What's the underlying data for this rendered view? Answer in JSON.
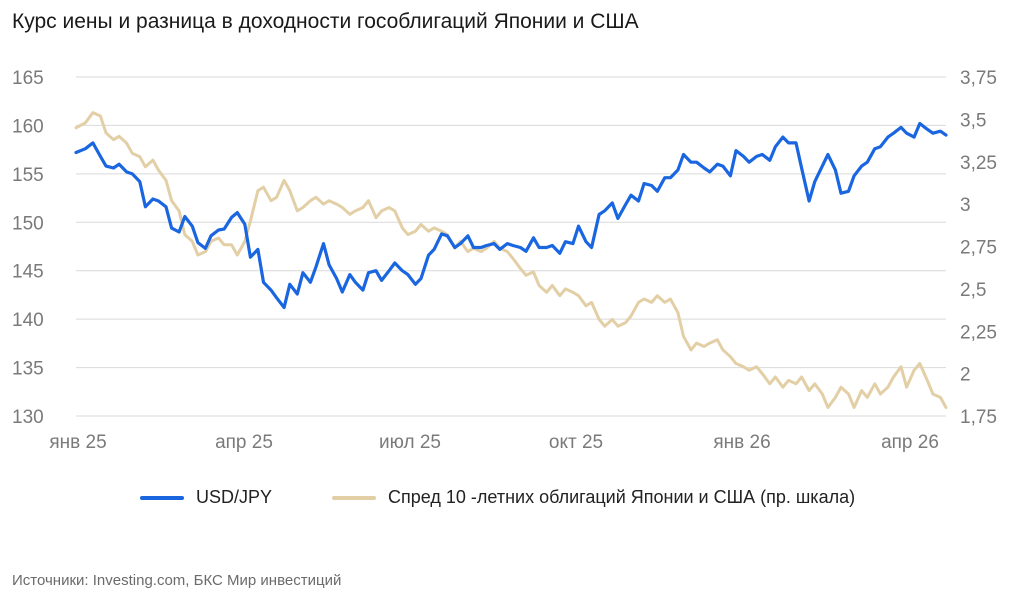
{
  "title": "Курс иены и разница в доходности гособлигаций Японии и США",
  "source": "Источники: Investing.com, БКС Мир инвестиций",
  "colors": {
    "usdjpy": "#1a66e0",
    "spread": "#e2cfa6",
    "grid": "#d9d9d9",
    "axis_text": "#7a7a7a"
  },
  "chart_data": {
    "type": "line",
    "title": "Курс иены и разница в доходности гособлигаций Японии и США",
    "xlabel": "",
    "ylabel": "",
    "grid": true,
    "legend_position": "bottom",
    "x_ticks": [
      "янв 25",
      "апр 25",
      "июл 25",
      "окт 25",
      "янв 26",
      "апр 26"
    ],
    "y_left": {
      "ticks": [
        "165",
        "160",
        "155",
        "150",
        "145",
        "140",
        "135",
        "130"
      ],
      "lim": [
        130,
        165
      ]
    },
    "y_right": {
      "ticks": [
        "3,75",
        "3,5",
        "3,25",
        "3",
        "2,75",
        "2,5",
        "2,25",
        "2",
        "1,75"
      ],
      "lim": [
        1.75,
        3.75
      ]
    },
    "x_range": [
      "2025-01-01",
      "2026-04-10"
    ],
    "series": [
      {
        "name": "USD/JPY",
        "axis": "left",
        "color": "#1a66e0",
        "points": [
          [
            "2025-01-01",
            157.2
          ],
          [
            "2025-01-06",
            157.6
          ],
          [
            "2025-01-10",
            158.2
          ],
          [
            "2025-01-14",
            156.8
          ],
          [
            "2025-01-17",
            155.8
          ],
          [
            "2025-01-21",
            155.6
          ],
          [
            "2025-01-24",
            156.0
          ],
          [
            "2025-01-28",
            155.2
          ],
          [
            "2025-01-31",
            155.0
          ],
          [
            "2025-02-04",
            154.2
          ],
          [
            "2025-02-07",
            151.6
          ],
          [
            "2025-02-11",
            152.4
          ],
          [
            "2025-02-14",
            152.2
          ],
          [
            "2025-02-18",
            151.6
          ],
          [
            "2025-02-21",
            149.4
          ],
          [
            "2025-02-25",
            149.0
          ],
          [
            "2025-02-28",
            150.6
          ],
          [
            "2025-03-04",
            149.6
          ],
          [
            "2025-03-07",
            147.9
          ],
          [
            "2025-03-11",
            147.3
          ],
          [
            "2025-03-14",
            148.6
          ],
          [
            "2025-03-18",
            149.2
          ],
          [
            "2025-03-21",
            149.3
          ],
          [
            "2025-03-25",
            150.5
          ],
          [
            "2025-03-28",
            151.0
          ],
          [
            "2025-04-01",
            149.8
          ],
          [
            "2025-04-04",
            146.4
          ],
          [
            "2025-04-08",
            147.2
          ],
          [
            "2025-04-11",
            143.8
          ],
          [
            "2025-04-15",
            143.0
          ],
          [
            "2025-04-18",
            142.2
          ],
          [
            "2025-04-22",
            141.2
          ],
          [
            "2025-04-25",
            143.6
          ],
          [
            "2025-04-29",
            142.6
          ],
          [
            "2025-05-02",
            144.8
          ],
          [
            "2025-05-06",
            143.8
          ],
          [
            "2025-05-09",
            145.4
          ],
          [
            "2025-05-13",
            147.8
          ],
          [
            "2025-05-16",
            145.6
          ],
          [
            "2025-05-20",
            144.2
          ],
          [
            "2025-05-23",
            142.8
          ],
          [
            "2025-05-27",
            144.6
          ],
          [
            "2025-05-30",
            143.8
          ],
          [
            "2025-06-03",
            143.0
          ],
          [
            "2025-06-06",
            144.8
          ],
          [
            "2025-06-10",
            145.0
          ],
          [
            "2025-06-13",
            144.0
          ],
          [
            "2025-06-17",
            145.0
          ],
          [
            "2025-06-20",
            145.8
          ],
          [
            "2025-06-24",
            145.0
          ],
          [
            "2025-06-27",
            144.6
          ],
          [
            "2025-07-01",
            143.6
          ],
          [
            "2025-07-04",
            144.2
          ],
          [
            "2025-07-08",
            146.6
          ],
          [
            "2025-07-11",
            147.2
          ],
          [
            "2025-07-15",
            148.8
          ],
          [
            "2025-07-18",
            148.6
          ],
          [
            "2025-07-22",
            147.4
          ],
          [
            "2025-07-25",
            147.8
          ],
          [
            "2025-07-29",
            148.6
          ],
          [
            "2025-08-01",
            147.4
          ],
          [
            "2025-08-05",
            147.4
          ],
          [
            "2025-08-08",
            147.6
          ],
          [
            "2025-08-12",
            147.8
          ],
          [
            "2025-08-15",
            147.2
          ],
          [
            "2025-08-19",
            147.8
          ],
          [
            "2025-08-22",
            147.6
          ],
          [
            "2025-08-26",
            147.4
          ],
          [
            "2025-08-29",
            147.0
          ],
          [
            "2025-09-02",
            148.4
          ],
          [
            "2025-09-05",
            147.4
          ],
          [
            "2025-09-09",
            147.4
          ],
          [
            "2025-09-12",
            147.6
          ],
          [
            "2025-09-16",
            146.8
          ],
          [
            "2025-09-19",
            148.0
          ],
          [
            "2025-09-23",
            147.8
          ],
          [
            "2025-09-26",
            149.6
          ],
          [
            "2025-09-30",
            148.0
          ],
          [
            "2025-10-03",
            147.4
          ],
          [
            "2025-10-07",
            150.8
          ],
          [
            "2025-10-10",
            151.2
          ],
          [
            "2025-10-14",
            152.0
          ],
          [
            "2025-10-17",
            150.4
          ],
          [
            "2025-10-21",
            151.8
          ],
          [
            "2025-10-24",
            152.8
          ],
          [
            "2025-10-28",
            152.2
          ],
          [
            "2025-10-31",
            154.0
          ],
          [
            "2025-11-04",
            153.8
          ],
          [
            "2025-11-07",
            153.2
          ],
          [
            "2025-11-11",
            154.6
          ],
          [
            "2025-11-14",
            154.6
          ],
          [
            "2025-11-18",
            155.4
          ],
          [
            "2025-11-21",
            157.0
          ],
          [
            "2025-11-25",
            156.2
          ],
          [
            "2025-11-28",
            156.2
          ],
          [
            "2025-12-02",
            155.6
          ],
          [
            "2025-12-05",
            155.2
          ],
          [
            "2025-12-09",
            156.0
          ],
          [
            "2025-12-12",
            155.8
          ],
          [
            "2025-12-16",
            154.8
          ],
          [
            "2025-12-19",
            157.4
          ],
          [
            "2025-12-23",
            156.8
          ],
          [
            "2025-12-26",
            156.2
          ],
          [
            "2025-12-30",
            156.8
          ],
          [
            "2026-01-02",
            157.0
          ],
          [
            "2026-01-06",
            156.4
          ],
          [
            "2026-01-09",
            157.8
          ],
          [
            "2026-01-13",
            158.8
          ],
          [
            "2026-01-16",
            158.2
          ],
          [
            "2026-01-20",
            158.2
          ],
          [
            "2026-01-23",
            155.6
          ],
          [
            "2026-01-27",
            152.2
          ],
          [
            "2026-01-30",
            154.2
          ],
          [
            "2026-02-03",
            155.8
          ],
          [
            "2026-02-06",
            157.0
          ],
          [
            "2026-02-10",
            155.4
          ],
          [
            "2026-02-13",
            153.0
          ],
          [
            "2026-02-17",
            153.2
          ],
          [
            "2026-02-20",
            154.8
          ],
          [
            "2026-02-24",
            155.8
          ],
          [
            "2026-02-27",
            156.2
          ],
          [
            "2026-03-03",
            157.6
          ],
          [
            "2026-03-06",
            157.8
          ],
          [
            "2026-03-10",
            158.8
          ],
          [
            "2026-03-13",
            159.2
          ],
          [
            "2026-03-17",
            159.8
          ],
          [
            "2026-03-20",
            159.2
          ],
          [
            "2026-03-24",
            158.8
          ],
          [
            "2026-03-27",
            160.2
          ],
          [
            "2026-03-31",
            159.6
          ],
          [
            "2026-04-03",
            159.2
          ],
          [
            "2026-04-07",
            159.4
          ],
          [
            "2026-04-10",
            159.0
          ]
        ]
      },
      {
        "name": "Спред 10 -летних облигаций Японии и США (пр. шкала)",
        "axis": "right",
        "color": "#e2cfa6",
        "points": [
          [
            "2025-01-01",
            3.45
          ],
          [
            "2025-01-06",
            3.48
          ],
          [
            "2025-01-10",
            3.54
          ],
          [
            "2025-01-14",
            3.52
          ],
          [
            "2025-01-17",
            3.42
          ],
          [
            "2025-01-21",
            3.38
          ],
          [
            "2025-01-24",
            3.4
          ],
          [
            "2025-01-28",
            3.36
          ],
          [
            "2025-01-31",
            3.3
          ],
          [
            "2025-02-04",
            3.28
          ],
          [
            "2025-02-07",
            3.22
          ],
          [
            "2025-02-11",
            3.26
          ],
          [
            "2025-02-14",
            3.2
          ],
          [
            "2025-02-18",
            3.14
          ],
          [
            "2025-02-21",
            3.02
          ],
          [
            "2025-02-25",
            2.96
          ],
          [
            "2025-02-28",
            2.82
          ],
          [
            "2025-03-04",
            2.78
          ],
          [
            "2025-03-07",
            2.7
          ],
          [
            "2025-03-11",
            2.72
          ],
          [
            "2025-03-14",
            2.78
          ],
          [
            "2025-03-18",
            2.8
          ],
          [
            "2025-03-21",
            2.76
          ],
          [
            "2025-03-25",
            2.76
          ],
          [
            "2025-03-28",
            2.7
          ],
          [
            "2025-04-01",
            2.78
          ],
          [
            "2025-04-04",
            2.9
          ],
          [
            "2025-04-08",
            3.08
          ],
          [
            "2025-04-11",
            3.1
          ],
          [
            "2025-04-15",
            3.02
          ],
          [
            "2025-04-18",
            3.04
          ],
          [
            "2025-04-22",
            3.14
          ],
          [
            "2025-04-25",
            3.08
          ],
          [
            "2025-04-29",
            2.96
          ],
          [
            "2025-05-02",
            2.98
          ],
          [
            "2025-05-06",
            3.02
          ],
          [
            "2025-05-09",
            3.04
          ],
          [
            "2025-05-13",
            3.0
          ],
          [
            "2025-05-16",
            3.02
          ],
          [
            "2025-05-20",
            3.0
          ],
          [
            "2025-05-23",
            2.98
          ],
          [
            "2025-05-27",
            2.94
          ],
          [
            "2025-05-30",
            2.96
          ],
          [
            "2025-06-03",
            2.98
          ],
          [
            "2025-06-06",
            3.02
          ],
          [
            "2025-06-10",
            2.92
          ],
          [
            "2025-06-13",
            2.96
          ],
          [
            "2025-06-17",
            2.98
          ],
          [
            "2025-06-20",
            2.96
          ],
          [
            "2025-06-24",
            2.86
          ],
          [
            "2025-06-27",
            2.82
          ],
          [
            "2025-07-01",
            2.84
          ],
          [
            "2025-07-04",
            2.88
          ],
          [
            "2025-07-08",
            2.84
          ],
          [
            "2025-07-11",
            2.86
          ],
          [
            "2025-07-15",
            2.84
          ],
          [
            "2025-07-18",
            2.82
          ],
          [
            "2025-07-22",
            2.74
          ],
          [
            "2025-07-25",
            2.78
          ],
          [
            "2025-07-29",
            2.72
          ],
          [
            "2025-08-01",
            2.74
          ],
          [
            "2025-08-05",
            2.72
          ],
          [
            "2025-08-08",
            2.74
          ],
          [
            "2025-08-12",
            2.78
          ],
          [
            "2025-08-15",
            2.74
          ],
          [
            "2025-08-19",
            2.72
          ],
          [
            "2025-08-22",
            2.68
          ],
          [
            "2025-08-26",
            2.62
          ],
          [
            "2025-08-29",
            2.58
          ],
          [
            "2025-09-02",
            2.6
          ],
          [
            "2025-09-05",
            2.52
          ],
          [
            "2025-09-09",
            2.48
          ],
          [
            "2025-09-12",
            2.52
          ],
          [
            "2025-09-16",
            2.46
          ],
          [
            "2025-09-19",
            2.5
          ],
          [
            "2025-09-23",
            2.48
          ],
          [
            "2025-09-26",
            2.46
          ],
          [
            "2025-09-30",
            2.4
          ],
          [
            "2025-10-03",
            2.42
          ],
          [
            "2025-10-07",
            2.32
          ],
          [
            "2025-10-10",
            2.28
          ],
          [
            "2025-10-14",
            2.32
          ],
          [
            "2025-10-17",
            2.28
          ],
          [
            "2025-10-21",
            2.3
          ],
          [
            "2025-10-24",
            2.34
          ],
          [
            "2025-10-28",
            2.42
          ],
          [
            "2025-10-31",
            2.44
          ],
          [
            "2025-11-04",
            2.42
          ],
          [
            "2025-11-07",
            2.46
          ],
          [
            "2025-11-11",
            2.42
          ],
          [
            "2025-11-14",
            2.44
          ],
          [
            "2025-11-18",
            2.36
          ],
          [
            "2025-11-21",
            2.22
          ],
          [
            "2025-11-25",
            2.14
          ],
          [
            "2025-11-28",
            2.18
          ],
          [
            "2025-12-02",
            2.16
          ],
          [
            "2025-12-05",
            2.18
          ],
          [
            "2025-12-09",
            2.2
          ],
          [
            "2025-12-12",
            2.14
          ],
          [
            "2025-12-16",
            2.1
          ],
          [
            "2025-12-19",
            2.06
          ],
          [
            "2025-12-23",
            2.04
          ],
          [
            "2025-12-26",
            2.02
          ],
          [
            "2025-12-30",
            2.04
          ],
          [
            "2026-01-02",
            2.0
          ],
          [
            "2026-01-06",
            1.94
          ],
          [
            "2026-01-09",
            1.98
          ],
          [
            "2026-01-13",
            1.92
          ],
          [
            "2026-01-16",
            1.96
          ],
          [
            "2026-01-20",
            1.94
          ],
          [
            "2026-01-23",
            1.98
          ],
          [
            "2026-01-27",
            1.9
          ],
          [
            "2026-01-30",
            1.94
          ],
          [
            "2026-02-03",
            1.88
          ],
          [
            "2026-02-06",
            1.8
          ],
          [
            "2026-02-10",
            1.86
          ],
          [
            "2026-02-13",
            1.92
          ],
          [
            "2026-02-17",
            1.88
          ],
          [
            "2026-02-20",
            1.8
          ],
          [
            "2026-02-24",
            1.9
          ],
          [
            "2026-02-27",
            1.86
          ],
          [
            "2026-03-03",
            1.94
          ],
          [
            "2026-03-06",
            1.88
          ],
          [
            "2026-03-10",
            1.92
          ],
          [
            "2026-03-13",
            1.98
          ],
          [
            "2026-03-17",
            2.04
          ],
          [
            "2026-03-20",
            1.92
          ],
          [
            "2026-03-24",
            2.02
          ],
          [
            "2026-03-27",
            2.06
          ],
          [
            "2026-03-31",
            1.96
          ],
          [
            "2026-04-03",
            1.88
          ],
          [
            "2026-04-07",
            1.86
          ],
          [
            "2026-04-10",
            1.8
          ]
        ]
      }
    ]
  }
}
